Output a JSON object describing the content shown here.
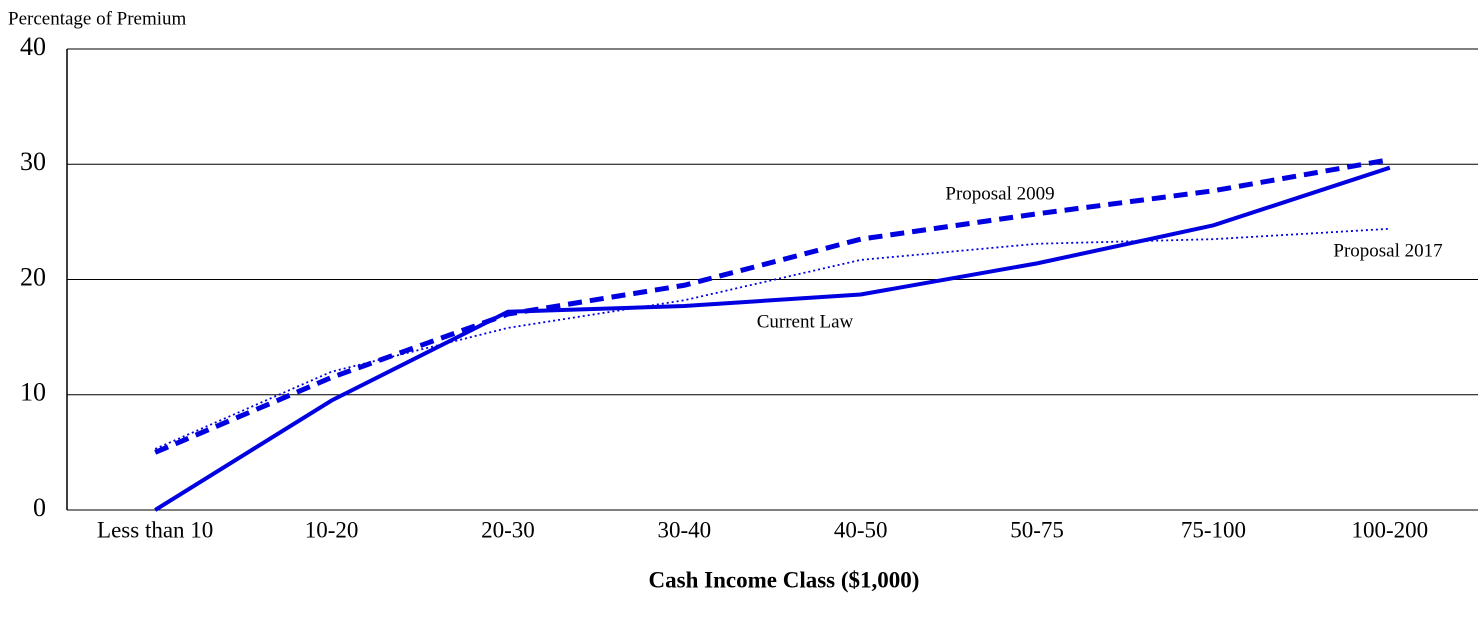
{
  "chart_data": {
    "type": "line",
    "ylabel": "Percentage of Premium",
    "xlabel": "Cash Income Class ($1,000)",
    "categories": [
      "Less than 10",
      "10-20",
      "20-30",
      "30-40",
      "40-50",
      "50-75",
      "75-100",
      "100-200"
    ],
    "series": [
      {
        "name": "Current Law",
        "color": "#0000e0",
        "style": "solid",
        "values": [
          0,
          9.5,
          17.2,
          17.7,
          18.7,
          21.4,
          24.7,
          29.7
        ]
      },
      {
        "name": "Proposal 2009",
        "color": "#0000e0",
        "style": "dashed",
        "values": [
          5,
          11.5,
          17,
          19.5,
          23.5,
          25.7,
          27.7,
          30.4
        ]
      },
      {
        "name": "Proposal 2017",
        "color": "#0000e0",
        "style": "dotted",
        "values": [
          5.3,
          12,
          15.8,
          18.2,
          21.7,
          23.1,
          23.5,
          24.4
        ]
      }
    ],
    "ylim": [
      0,
      40
    ],
    "yticks": [
      0,
      10,
      20,
      30,
      40
    ],
    "grid": true
  }
}
